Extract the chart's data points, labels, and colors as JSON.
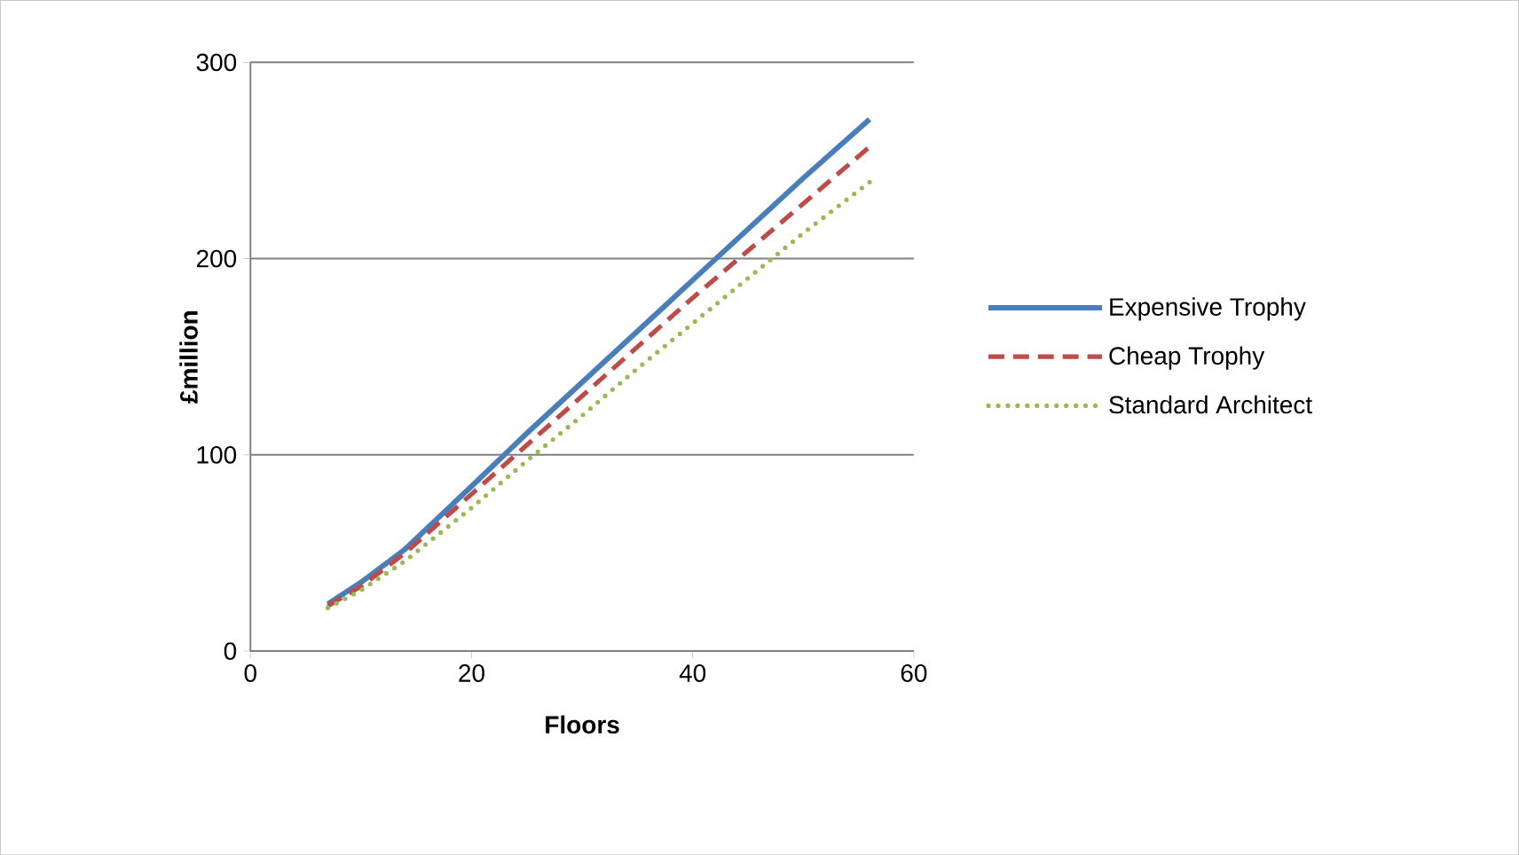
{
  "chart_data": {
    "type": "line",
    "xlabel": "Floors",
    "ylabel": "£million",
    "xlim": [
      0,
      60
    ],
    "ylim": [
      0,
      300
    ],
    "xticks": [
      0,
      20,
      40,
      60
    ],
    "yticks": [
      0,
      100,
      200,
      300
    ],
    "grid": "y",
    "legend": "right",
    "marker": "none",
    "series": [
      {
        "name": "Expensive Trophy",
        "color": "#4a7ebb",
        "line_style": "solid",
        "x": [
          7,
          10,
          14,
          20,
          25,
          30,
          35,
          40,
          45,
          50,
          56
        ],
        "values": [
          24,
          35,
          52,
          84,
          111,
          137,
          163,
          189,
          215,
          241,
          271
        ]
      },
      {
        "name": "Cheap Trophy",
        "color": "#be4b48",
        "line_style": "dashed",
        "x": [
          7,
          10,
          14,
          20,
          25,
          30,
          35,
          40,
          45,
          50,
          56
        ],
        "values": [
          23,
          33,
          50,
          80,
          105,
          130,
          155,
          180,
          204,
          228,
          257
        ]
      },
      {
        "name": "Standard Architect",
        "color": "#98b954",
        "line_style": "dotted",
        "x": [
          7,
          10,
          14,
          20,
          25,
          30,
          35,
          40,
          45,
          50,
          56
        ],
        "values": [
          22,
          31,
          46,
          73,
          97,
          120,
          144,
          167,
          190,
          213,
          239
        ]
      }
    ]
  }
}
